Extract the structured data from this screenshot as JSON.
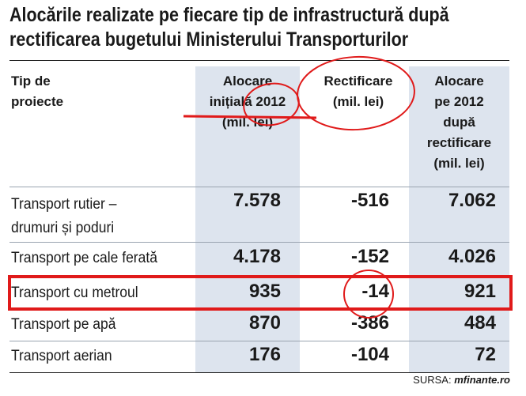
{
  "title": {
    "line1": "Alocările realizate pe fiecare tip de infrastructură după",
    "line2": "rectificarea bugetului Ministerului Transporturilor"
  },
  "table": {
    "headers": {
      "col1": [
        "Tip de",
        "proiecte"
      ],
      "col2": [
        "Alocare",
        "inițială 2012",
        "(mil. lei)"
      ],
      "col3": [
        "Rectificare",
        "(mil. lei)"
      ],
      "col4": [
        "Alocare",
        "pe 2012",
        "după",
        "rectificare",
        "(mil. lei)"
      ]
    },
    "rows": [
      {
        "label": [
          "Transport rutier –",
          "drumuri și poduri"
        ],
        "initial": "7.578",
        "rect": "-516",
        "final": "7.062"
      },
      {
        "label": [
          "Transport pe cale ferată"
        ],
        "initial": "4.178",
        "rect": "-152",
        "final": "4.026"
      },
      {
        "label": [
          "Transport cu metroul"
        ],
        "initial": "935",
        "rect": "-14",
        "final": "921"
      },
      {
        "label": [
          "Transport pe apă"
        ],
        "initial": "870",
        "rect": "-386",
        "final": "484"
      },
      {
        "label": [
          "Transport aerian"
        ],
        "initial": "176",
        "rect": "-104",
        "final": "72"
      }
    ]
  },
  "source": {
    "prefix": "SURSA:",
    "site": "mfinante.ro"
  },
  "colors": {
    "shade": "#dde4ee",
    "annotation": "#e01a1a"
  }
}
